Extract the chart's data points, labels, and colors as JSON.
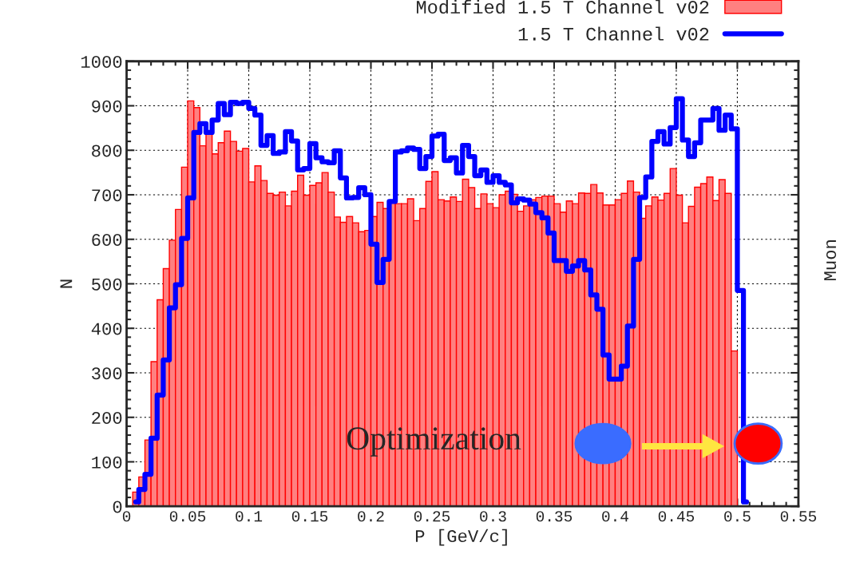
{
  "chart_data": {
    "type": "histogram",
    "xlabel": "P [GeV/c]",
    "ylabel": "N",
    "bins": [
      0.005,
      0.01,
      0.015,
      0.02,
      0.025,
      0.03,
      0.035,
      0.04,
      0.045,
      0.05,
      0.055,
      0.06,
      0.065,
      0.07,
      0.075,
      0.08,
      0.085,
      0.09,
      0.095,
      0.1,
      0.105,
      0.11,
      0.115,
      0.12,
      0.125,
      0.13,
      0.135,
      0.14,
      0.145,
      0.15,
      0.155,
      0.16,
      0.165,
      0.17,
      0.175,
      0.18,
      0.185,
      0.19,
      0.195,
      0.2,
      0.205,
      0.21,
      0.215,
      0.22,
      0.225,
      0.23,
      0.235,
      0.24,
      0.245,
      0.25,
      0.255,
      0.26,
      0.265,
      0.27,
      0.275,
      0.28,
      0.285,
      0.29,
      0.295,
      0.3,
      0.305,
      0.31,
      0.315,
      0.32,
      0.325,
      0.33,
      0.335,
      0.34,
      0.345,
      0.35,
      0.355,
      0.36,
      0.365,
      0.37,
      0.375,
      0.38,
      0.385,
      0.39,
      0.395,
      0.4,
      0.405,
      0.41,
      0.415,
      0.42,
      0.425,
      0.43,
      0.435,
      0.44,
      0.445,
      0.45,
      0.455,
      0.46,
      0.465,
      0.47,
      0.475,
      0.48,
      0.485,
      0.49,
      0.495,
      0.5,
      0.505,
      0.51
    ],
    "series": [
      {
        "name": "Modified 1.5 T Channel v02",
        "color": "#ff8080",
        "values": [
          32,
          66,
          149,
          325,
          464,
          534,
          598,
          667,
          762,
          911,
          896,
          810,
          840,
          792,
          817,
          843,
          820,
          798,
          804,
          729,
          765,
          732,
          703,
          699,
          706,
          675,
          708,
          744,
          699,
          721,
          727,
          750,
          706,
          650,
          638,
          651,
          637,
          617,
          620,
          651,
          683,
          669,
          686,
          680,
          680,
          691,
          642,
          669,
          730,
          752,
          689,
          686,
          695,
          685,
          735,
          716,
          669,
          702,
          680,
          671,
          700,
          708,
          701,
          663,
          675,
          689,
          694,
          697,
          697,
          680,
          661,
          686,
          680,
          704,
          703,
          723,
          704,
          677,
          677,
          689,
          703,
          731,
          706,
          647,
          675,
          695,
          688,
          703,
          759,
          699,
          637,
          674,
          717,
          725,
          740,
          687,
          734,
          703,
          349,
          0,
          0
        ]
      },
      {
        "name": "1.5 T Channel v02",
        "type": "step",
        "color": "#0000ff",
        "x": [
          0.0075,
          0.0125,
          0.0175,
          0.0225,
          0.0275,
          0.0325,
          0.0375,
          0.0425,
          0.0475,
          0.0525,
          0.0575,
          0.0625,
          0.0675,
          0.0725,
          0.0775,
          0.0825,
          0.0875,
          0.0925,
          0.0975,
          0.1025,
          0.1075,
          0.1125,
          0.1175,
          0.1225,
          0.1275,
          0.1325,
          0.1375,
          0.1425,
          0.1475,
          0.1525,
          0.1575,
          0.1625,
          0.1675,
          0.1725,
          0.1775,
          0.1825,
          0.1875,
          0.1925,
          0.1975,
          0.2025,
          0.2075,
          0.2125,
          0.2175,
          0.2225,
          0.2275,
          0.2325,
          0.2375,
          0.2425,
          0.2475,
          0.2525,
          0.2575,
          0.2625,
          0.2675,
          0.2725,
          0.2775,
          0.2825,
          0.2875,
          0.2925,
          0.2975,
          0.3025,
          0.3075,
          0.3125,
          0.3175,
          0.3225,
          0.3275,
          0.3325,
          0.3375,
          0.3425,
          0.3475,
          0.3525,
          0.3575,
          0.3625,
          0.3675,
          0.3725,
          0.3775,
          0.3825,
          0.3875,
          0.3925,
          0.3975,
          0.4025,
          0.4075,
          0.4125,
          0.4175,
          0.4225,
          0.4275,
          0.4325,
          0.4375,
          0.4425,
          0.4475,
          0.4525,
          0.4575,
          0.4625,
          0.4675,
          0.4725,
          0.4775,
          0.4825,
          0.4875,
          0.4925,
          0.4975,
          0.5025,
          0.5075
        ],
        "values": [
          10,
          38,
          72,
          153,
          250,
          329,
          446,
          498,
          602,
          693,
          840,
          860,
          840,
          868,
          905,
          880,
          908,
          905,
          908,
          894,
          879,
          811,
          833,
          793,
          796,
          842,
          821,
          756,
          759,
          815,
          783,
          774,
          772,
          799,
          738,
          693,
          694,
          716,
          700,
          589,
          503,
          555,
          685,
          796,
          799,
          805,
          802,
          759,
          786,
          832,
          836,
          777,
          783,
          749,
          811,
          786,
          743,
          756,
          728,
          743,
          728,
          722,
          682,
          691,
          688,
          679,
          660,
          648,
          614,
          552,
          552,
          528,
          540,
          552,
          531,
          475,
          443,
          340,
          286,
          286,
          315,
          405,
          555,
          694,
          740,
          820,
          842,
          814,
          851,
          916,
          823,
          786,
          817,
          868,
          868,
          894,
          845,
          879,
          848,
          485,
          10
        ]
      }
    ],
    "xlim": [
      0,
      0.55
    ],
    "xticks": [
      0,
      0.05,
      0.1,
      0.15,
      0.2,
      0.25,
      0.3,
      0.35,
      0.4,
      0.45,
      0.5,
      0.55
    ],
    "ylim": [
      0,
      1000
    ],
    "yticks": [
      0,
      100,
      200,
      300,
      400,
      500,
      600,
      700,
      800,
      900,
      1000
    ],
    "grid": true,
    "legend": "top right",
    "annotations": [
      "Optimization",
      "Muon"
    ]
  }
}
